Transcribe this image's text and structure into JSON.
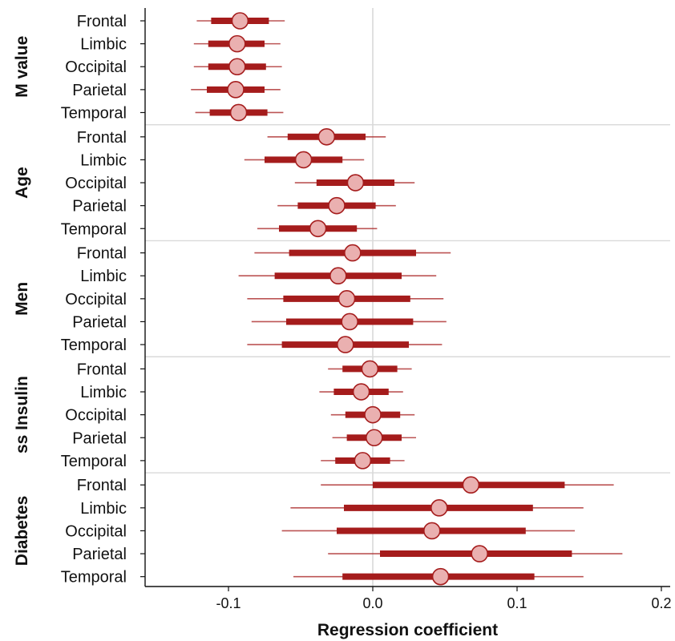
{
  "chart_data": {
    "type": "forest",
    "xlabel": "Regression coefficient",
    "xlim": [
      -0.155,
      0.2
    ],
    "x_ticks": [
      -0.1,
      0.0,
      0.1,
      0.2
    ],
    "x_tick_labels": [
      "-0.1",
      "0.0",
      "0.1",
      "0.2"
    ],
    "reference_line": 0,
    "colors": {
      "interval": "#a51c1c",
      "point_fill": "#eab0b0",
      "point_stroke": "#a51c1c",
      "reference": "#d9d9d9",
      "separator": "#d9d9d9"
    },
    "groups": [
      {
        "label": "M value",
        "rows": [
          {
            "label": "Frontal",
            "estimate": -0.092,
            "ci50": [
              -0.112,
              -0.072
            ],
            "ci95": [
              -0.122,
              -0.061
            ]
          },
          {
            "label": "Limbic",
            "estimate": -0.094,
            "ci50": [
              -0.114,
              -0.075
            ],
            "ci95": [
              -0.124,
              -0.064
            ]
          },
          {
            "label": "Occipital",
            "estimate": -0.094,
            "ci50": [
              -0.114,
              -0.074
            ],
            "ci95": [
              -0.124,
              -0.063
            ]
          },
          {
            "label": "Parietal",
            "estimate": -0.095,
            "ci50": [
              -0.115,
              -0.075
            ],
            "ci95": [
              -0.126,
              -0.064
            ]
          },
          {
            "label": "Temporal",
            "estimate": -0.093,
            "ci50": [
              -0.113,
              -0.073
            ],
            "ci95": [
              -0.123,
              -0.062
            ]
          }
        ]
      },
      {
        "label": "Age",
        "rows": [
          {
            "label": "Frontal",
            "estimate": -0.032,
            "ci50": [
              -0.059,
              -0.005
            ],
            "ci95": [
              -0.073,
              0.009
            ]
          },
          {
            "label": "Limbic",
            "estimate": -0.048,
            "ci50": [
              -0.075,
              -0.021
            ],
            "ci95": [
              -0.089,
              -0.006
            ]
          },
          {
            "label": "Occipital",
            "estimate": -0.012,
            "ci50": [
              -0.039,
              0.015
            ],
            "ci95": [
              -0.054,
              0.029
            ]
          },
          {
            "label": "Parietal",
            "estimate": -0.025,
            "ci50": [
              -0.052,
              0.002
            ],
            "ci95": [
              -0.066,
              0.016
            ]
          },
          {
            "label": "Temporal",
            "estimate": -0.038,
            "ci50": [
              -0.065,
              -0.011
            ],
            "ci95": [
              -0.08,
              0.003
            ]
          }
        ]
      },
      {
        "label": "Men",
        "rows": [
          {
            "label": "Frontal",
            "estimate": -0.014,
            "ci50": [
              -0.058,
              0.03
            ],
            "ci95": [
              -0.082,
              0.054
            ]
          },
          {
            "label": "Limbic",
            "estimate": -0.024,
            "ci50": [
              -0.068,
              0.02
            ],
            "ci95": [
              -0.093,
              0.044
            ]
          },
          {
            "label": "Occipital",
            "estimate": -0.018,
            "ci50": [
              -0.062,
              0.026
            ],
            "ci95": [
              -0.087,
              0.049
            ]
          },
          {
            "label": "Parietal",
            "estimate": -0.016,
            "ci50": [
              -0.06,
              0.028
            ],
            "ci95": [
              -0.084,
              0.051
            ]
          },
          {
            "label": "Temporal",
            "estimate": -0.019,
            "ci50": [
              -0.063,
              0.025
            ],
            "ci95": [
              -0.087,
              0.048
            ]
          }
        ]
      },
      {
        "label": "ss Insulin",
        "rows": [
          {
            "label": "Frontal",
            "estimate": -0.002,
            "ci50": [
              -0.021,
              0.017
            ],
            "ci95": [
              -0.031,
              0.027
            ]
          },
          {
            "label": "Limbic",
            "estimate": -0.008,
            "ci50": [
              -0.027,
              0.011
            ],
            "ci95": [
              -0.037,
              0.021
            ]
          },
          {
            "label": "Occipital",
            "estimate": 0.0,
            "ci50": [
              -0.019,
              0.019
            ],
            "ci95": [
              -0.029,
              0.029
            ]
          },
          {
            "label": "Parietal",
            "estimate": 0.001,
            "ci50": [
              -0.018,
              0.02
            ],
            "ci95": [
              -0.028,
              0.03
            ]
          },
          {
            "label": "Temporal",
            "estimate": -0.007,
            "ci50": [
              -0.026,
              0.012
            ],
            "ci95": [
              -0.036,
              0.022
            ]
          }
        ]
      },
      {
        "label": "Diabetes",
        "rows": [
          {
            "label": "Frontal",
            "estimate": 0.068,
            "ci50": [
              0.0,
              0.133
            ],
            "ci95": [
              -0.036,
              0.167
            ]
          },
          {
            "label": "Limbic",
            "estimate": 0.046,
            "ci50": [
              -0.02,
              0.111
            ],
            "ci95": [
              -0.057,
              0.146
            ]
          },
          {
            "label": "Occipital",
            "estimate": 0.041,
            "ci50": [
              -0.025,
              0.106
            ],
            "ci95": [
              -0.063,
              0.14
            ]
          },
          {
            "label": "Parietal",
            "estimate": 0.074,
            "ci50": [
              0.005,
              0.138
            ],
            "ci95": [
              -0.031,
              0.173
            ]
          },
          {
            "label": "Temporal",
            "estimate": 0.047,
            "ci50": [
              -0.021,
              0.112
            ],
            "ci95": [
              -0.055,
              0.146
            ]
          }
        ]
      }
    ]
  }
}
